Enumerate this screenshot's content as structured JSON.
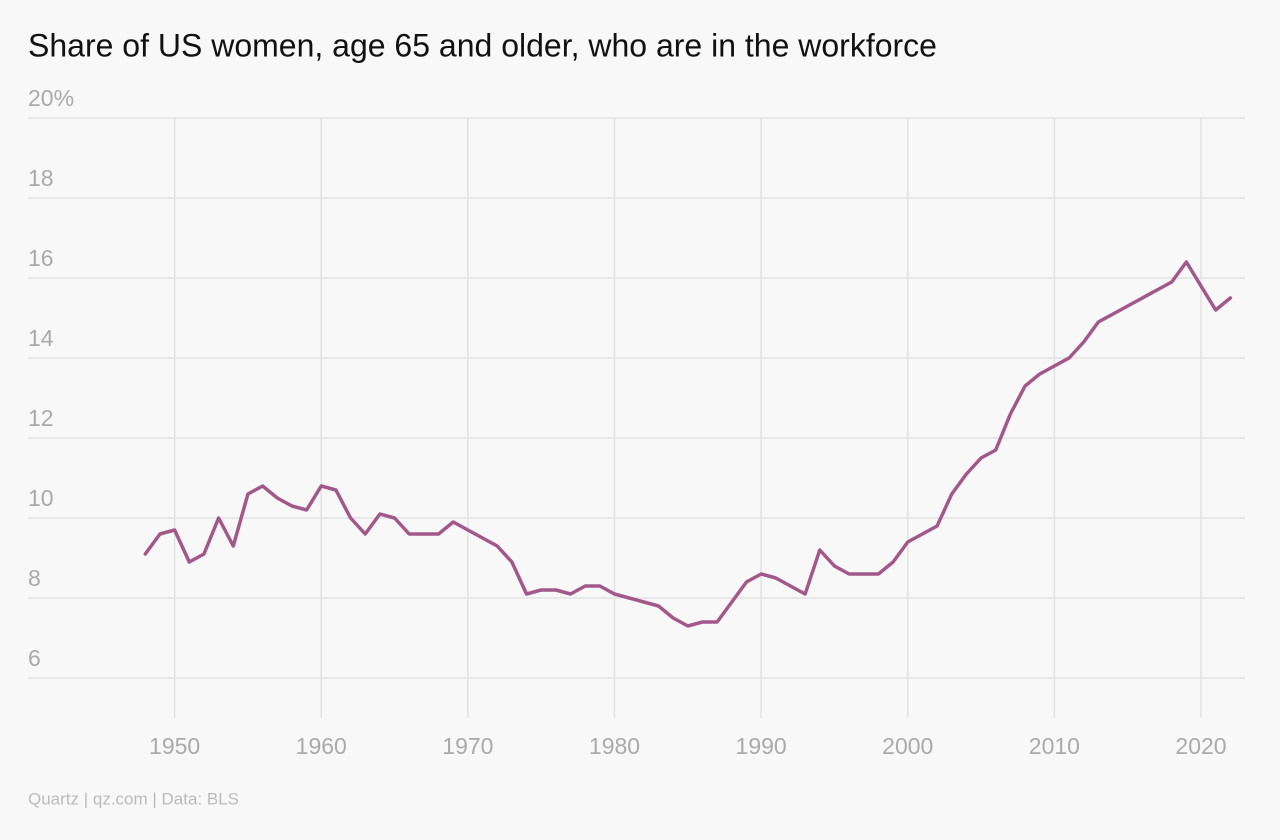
{
  "chart_data": {
    "type": "line",
    "title": "Share of US women, age 65 and older, who are in the workforce",
    "source": "Quartz | qz.com | Data: BLS",
    "x": [
      1948,
      1949,
      1950,
      1951,
      1952,
      1953,
      1954,
      1955,
      1956,
      1957,
      1958,
      1959,
      1960,
      1961,
      1962,
      1963,
      1964,
      1965,
      1966,
      1967,
      1968,
      1969,
      1970,
      1971,
      1972,
      1973,
      1974,
      1975,
      1976,
      1977,
      1978,
      1979,
      1980,
      1981,
      1982,
      1983,
      1984,
      1985,
      1986,
      1987,
      1988,
      1989,
      1990,
      1991,
      1992,
      1993,
      1994,
      1995,
      1996,
      1997,
      1998,
      1999,
      2000,
      2001,
      2002,
      2003,
      2004,
      2005,
      2006,
      2007,
      2008,
      2009,
      2010,
      2011,
      2012,
      2013,
      2014,
      2015,
      2016,
      2017,
      2018,
      2019,
      2020,
      2021,
      2022
    ],
    "values": [
      9.1,
      9.6,
      9.7,
      8.9,
      9.1,
      10.0,
      9.3,
      10.6,
      10.8,
      10.5,
      10.3,
      10.2,
      10.8,
      10.7,
      10.0,
      9.6,
      10.1,
      10.0,
      9.6,
      9.6,
      9.6,
      9.9,
      9.7,
      9.5,
      9.3,
      8.9,
      8.1,
      8.2,
      8.2,
      8.1,
      8.3,
      8.3,
      8.1,
      8.0,
      7.9,
      7.8,
      7.5,
      7.3,
      7.4,
      7.4,
      7.9,
      8.4,
      8.6,
      8.5,
      8.3,
      8.1,
      9.2,
      8.8,
      8.6,
      8.6,
      8.6,
      8.9,
      9.4,
      9.6,
      9.8,
      10.6,
      11.1,
      11.5,
      11.7,
      12.6,
      13.3,
      13.6,
      13.8,
      14.0,
      14.4,
      14.9,
      15.1,
      15.3,
      15.5,
      15.7,
      15.9,
      16.4,
      15.8,
      15.2,
      15.5
    ],
    "color": "#a3588a",
    "xlim": [
      1940,
      2023
    ],
    "xticks": [
      1950,
      1960,
      1970,
      1980,
      1990,
      2000,
      2010,
      2020
    ],
    "ylim": [
      5,
      20
    ],
    "yticks": [
      6,
      8,
      10,
      12,
      14,
      16,
      18,
      {
        "value": 20,
        "label": "20%"
      }
    ],
    "grid": true
  }
}
